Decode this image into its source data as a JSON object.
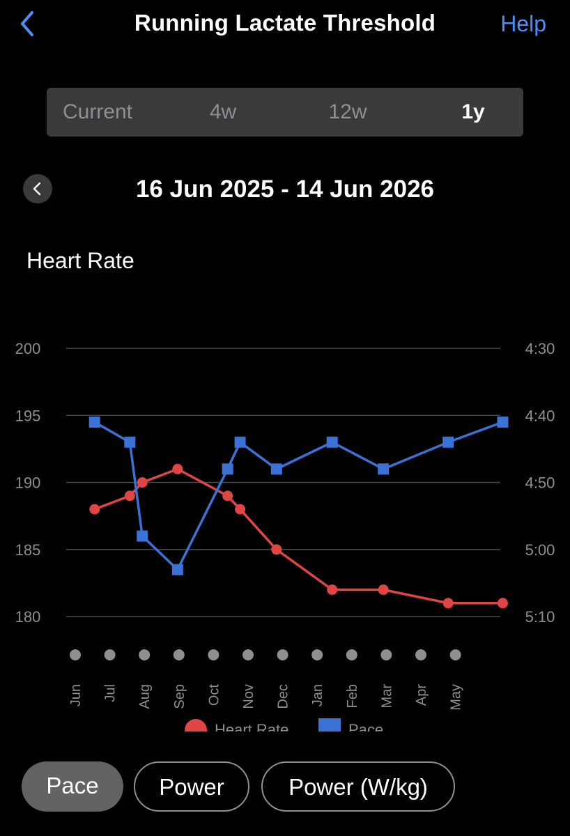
{
  "header": {
    "title": "Running Lactate Threshold",
    "help_label": "Help",
    "back_icon": "chevron-left-icon"
  },
  "period_tabs": [
    {
      "label": "Current",
      "active": false
    },
    {
      "label": "4w",
      "active": false
    },
    {
      "label": "12w",
      "active": false
    },
    {
      "label": "1y",
      "active": true
    }
  ],
  "date_range": "16 Jun 2025 - 14 Jun 2026",
  "metric_title": "Heart Rate",
  "chart_data": {
    "type": "line",
    "categories": [
      "Jun",
      "Jul",
      "Aug",
      "Sep",
      "Oct",
      "Nov",
      "Dec",
      "Jan",
      "Feb",
      "Mar",
      "Apr",
      "May"
    ],
    "y_left": {
      "ticks": [
        200,
        195,
        190,
        185,
        180
      ],
      "range": [
        180,
        200
      ]
    },
    "y_right": {
      "ticks": [
        "4:30",
        "4:40",
        "4:50",
        "5:00",
        "5:10"
      ],
      "range_seconds": [
        270,
        310
      ],
      "inverted": true
    },
    "series": [
      {
        "name": "Heart Rate",
        "axis": "left",
        "marker": "circle",
        "color": "#e04646",
        "points": [
          {
            "x": "2025-06-18",
            "y": 188
          },
          {
            "x": "2025-07-19",
            "y": 189
          },
          {
            "x": "2025-07-30",
            "y": 190
          },
          {
            "x": "2025-08-30",
            "y": 191
          },
          {
            "x": "2025-10-13",
            "y": 189
          },
          {
            "x": "2025-10-24",
            "y": 188
          },
          {
            "x": "2025-11-25",
            "y": 185
          },
          {
            "x": "2026-01-13",
            "y": 182
          },
          {
            "x": "2026-02-27",
            "y": 182
          },
          {
            "x": "2026-04-25",
            "y": 181
          },
          {
            "x": "2026-06-12",
            "y": 181
          }
        ]
      },
      {
        "name": "Pace",
        "axis": "right",
        "marker": "square",
        "color": "#3a72d6",
        "points": [
          {
            "x": "2025-06-18",
            "y": "4:41"
          },
          {
            "x": "2025-07-19",
            "y": "4:44"
          },
          {
            "x": "2025-07-30",
            "y": "4:58"
          },
          {
            "x": "2025-08-30",
            "y": "5:03"
          },
          {
            "x": "2025-10-13",
            "y": "4:48"
          },
          {
            "x": "2025-10-24",
            "y": "4:44"
          },
          {
            "x": "2025-11-25",
            "y": "4:48"
          },
          {
            "x": "2026-01-13",
            "y": "4:44"
          },
          {
            "x": "2026-02-27",
            "y": "4:48"
          },
          {
            "x": "2026-04-25",
            "y": "4:44"
          },
          {
            "x": "2026-06-12",
            "y": "4:41"
          }
        ]
      }
    ],
    "grid": true,
    "legend": "bottom"
  },
  "legend": [
    {
      "label": "Heart Rate",
      "color": "#e04646"
    },
    {
      "label": "Pace",
      "color": "#3a72d6"
    }
  ],
  "metric_pills": [
    {
      "label": "Pace",
      "active": true
    },
    {
      "label": "Power",
      "active": false
    },
    {
      "label": "Power (W/kg)",
      "active": false
    }
  ]
}
